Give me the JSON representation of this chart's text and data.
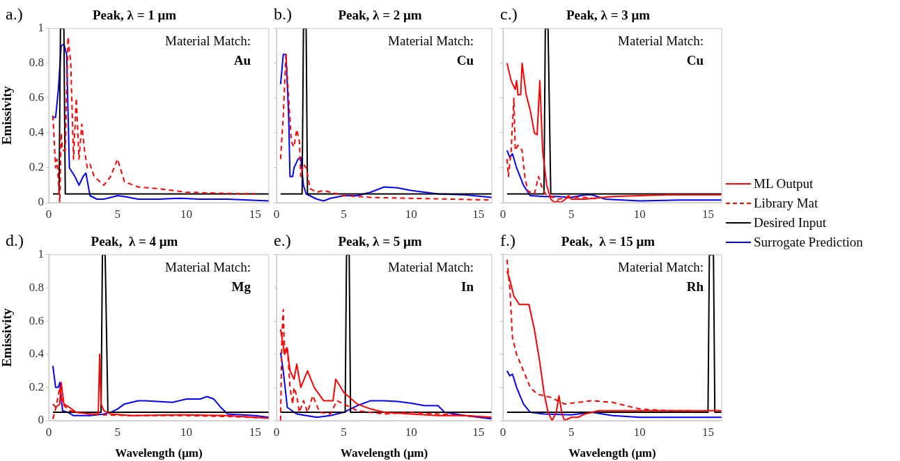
{
  "chart_data": [
    {
      "type": "line",
      "title": "Peak, λ = 1 μm",
      "ylabel": "Emissivity",
      "annotations": [
        "a.)",
        "Material Match:",
        "Au"
      ],
      "xlim": [
        0,
        16
      ],
      "xticks": [
        0,
        5,
        10,
        15
      ],
      "ylim": [
        0,
        1
      ],
      "yticks": [
        0,
        0.2,
        0.4,
        0.6,
        0.8,
        1
      ],
      "series": [
        {
          "color": "#ff0000",
          "line_style": "dashed",
          "x": [
            0.3,
            0.5,
            0.6,
            0.8,
            0.9,
            1.0,
            1.2,
            1.4,
            1.6,
            1.8,
            2.0,
            2.2,
            2.4,
            2.6,
            2.8,
            3.0,
            3.3,
            4,
            4.5,
            5,
            5.5,
            6.5,
            8,
            10,
            12,
            15
          ],
          "values": [
            0.5,
            0.2,
            0.25,
            0.0,
            0.4,
            0.3,
            0.3,
            0.95,
            0.8,
            0.25,
            0.6,
            0.25,
            0.45,
            0.3,
            0.2,
            0.22,
            0.15,
            0.1,
            0.15,
            0.25,
            0.12,
            0.09,
            0.08,
            0.06,
            0.055,
            0.05
          ]
        },
        {
          "color": "#000000",
          "x": [
            0.3,
            0.75,
            0.85,
            1.1,
            1.2,
            16
          ],
          "values": [
            0.05,
            0.05,
            1,
            1,
            0.05,
            0.05
          ]
        },
        {
          "color": "#0000ff",
          "x": [
            0.3,
            0.5,
            0.7,
            0.9,
            1.1,
            1.3,
            1.5,
            1.9,
            2.2,
            2.5,
            2.7,
            3.0,
            3.5,
            4,
            4.5,
            5,
            5.5,
            6.5,
            8,
            9.5,
            11,
            13,
            16
          ],
          "values": [
            0.49,
            0.49,
            0.65,
            0.9,
            0.91,
            0.85,
            0.2,
            0.15,
            0.1,
            0.15,
            0.17,
            0.04,
            0.02,
            0.02,
            0.03,
            0.04,
            0.035,
            0.02,
            0.02,
            0.025,
            0.02,
            0.02,
            0.01
          ]
        }
      ]
    },
    {
      "type": "line",
      "title": "Peak, λ = 2 μm",
      "annotations": [
        "b.)",
        "Material Match:",
        "Cu"
      ],
      "xlim": [
        0,
        16
      ],
      "xticks": [
        0,
        5,
        10,
        15
      ],
      "ylim": [
        0,
        1
      ],
      "yticks": [
        0,
        0.2,
        0.4,
        0.6,
        0.8,
        1
      ],
      "tick_labels": "x",
      "series": [
        {
          "color": "#ff0000",
          "line_style": "dashed",
          "x": [
            0.3,
            0.5,
            0.7,
            0.9,
            1.1,
            1.3,
            1.5,
            1.7,
            1.8,
            2.0,
            2.2,
            2.5,
            3,
            3.5,
            4,
            5,
            7,
            10,
            13,
            16
          ],
          "values": [
            0.25,
            0.5,
            0.85,
            0.6,
            0.35,
            0.32,
            0.42,
            0.35,
            0.15,
            0.22,
            0.2,
            0.08,
            0.06,
            0.07,
            0.06,
            0.04,
            0.03,
            0.025,
            0.02,
            0.015
          ]
        },
        {
          "color": "#000000",
          "x": [
            0.3,
            1.9,
            2.0,
            2.2,
            2.3,
            16
          ],
          "values": [
            0.05,
            0.05,
            1,
            1,
            0.05,
            0.05
          ]
        },
        {
          "color": "#0000ff",
          "x": [
            0.3,
            0.5,
            0.7,
            0.9,
            1.0,
            1.2,
            1.3,
            1.6,
            1.8,
            2.0,
            2.2,
            3,
            3.5,
            4,
            5,
            6,
            7,
            8,
            9,
            10,
            11,
            12,
            14,
            16
          ],
          "values": [
            0.68,
            0.85,
            0.85,
            0.5,
            0.15,
            0.15,
            0.2,
            0.25,
            0.26,
            0.1,
            0.05,
            0.02,
            0.01,
            0.025,
            0.04,
            0.04,
            0.06,
            0.09,
            0.085,
            0.07,
            0.06,
            0.05,
            0.045,
            0.03
          ]
        }
      ]
    },
    {
      "type": "line",
      "title": "Peak, λ = 3 μm",
      "annotations": [
        "c.)",
        "Material Match:",
        "Cu"
      ],
      "xlim": [
        0,
        16
      ],
      "xticks": [
        0,
        5,
        10,
        15
      ],
      "ylim": [
        0,
        1
      ],
      "yticks": [
        0,
        0.2,
        0.4,
        0.6,
        0.8,
        1
      ],
      "tick_labels": "x",
      "legend": "right",
      "series": [
        {
          "name": "ML Output",
          "color": "#ff0000",
          "x": [
            0.3,
            0.6,
            0.9,
            1.0,
            1.1,
            1.3,
            1.4,
            1.7,
            2.0,
            2.3,
            2.5,
            2.7,
            2.9,
            3.2,
            3.5,
            3.8,
            4.0,
            4.2,
            4.5,
            4.8,
            5,
            6,
            8,
            10,
            12,
            16
          ],
          "values": [
            0.8,
            0.7,
            0.65,
            0.7,
            0.62,
            0.62,
            0.8,
            0.62,
            0.53,
            0.4,
            0.39,
            0.7,
            0.3,
            0.1,
            0.02,
            0.0,
            0.01,
            0.0,
            0.015,
            0.04,
            0.02,
            0.02,
            0.035,
            0.04,
            0.045,
            0.045
          ]
        },
        {
          "name": "Library Mat",
          "color": "#ff0000",
          "line_style": "dashed",
          "x": [
            0.3,
            0.4,
            0.6,
            0.8,
            0.9,
            1.1,
            1.3,
            1.4,
            1.6,
            1.8,
            2.0,
            2.3,
            2.6,
            2.8,
            3.1,
            4,
            5,
            6,
            7
          ],
          "values": [
            0.25,
            0.15,
            0.3,
            0.6,
            0.3,
            0.33,
            0.31,
            0.3,
            0.15,
            0.07,
            0.06,
            0.05,
            0.15,
            0.1,
            0.05,
            0.02,
            0.03,
            0.03,
            0.02
          ]
        },
        {
          "name": "Desired Input",
          "color": "#000000",
          "x": [
            0.3,
            3.0,
            3.1,
            3.3,
            3.5,
            16
          ],
          "values": [
            0.05,
            0.05,
            1,
            1,
            0.05,
            0.05
          ]
        },
        {
          "name": "Surrogate Prediction",
          "color": "#0000ff",
          "x": [
            0.3,
            0.5,
            0.7,
            1.0,
            1.5,
            2,
            3,
            4,
            5,
            6,
            6.5,
            7.5,
            10,
            13,
            16
          ],
          "values": [
            0.3,
            0.26,
            0.28,
            0.2,
            0.1,
            0.04,
            0.035,
            0.035,
            0.03,
            0.045,
            0.045,
            0.02,
            0.01,
            0.015,
            0.015
          ]
        }
      ]
    },
    {
      "type": "line",
      "title": "Peak,  λ = 4 μm",
      "xlabel": "Wavelength (μm)",
      "ylabel": "Emissivity",
      "annotations": [
        "d.)",
        "Material Match:",
        "Mg"
      ],
      "xlim": [
        0,
        16
      ],
      "xticks": [
        0,
        5,
        10,
        15
      ],
      "ylim": [
        0,
        1
      ],
      "yticks": [
        0,
        0.2,
        0.4,
        0.6,
        0.8,
        1
      ],
      "series": [
        {
          "color": "#ff0000",
          "x": [
            0.3,
            0.5,
            0.8,
            0.9,
            1.1,
            1.5,
            2,
            3,
            3.6,
            3.7,
            3.8,
            4,
            4.5,
            6,
            10,
            13,
            16
          ],
          "values": [
            0.1,
            0.08,
            0.1,
            0.23,
            0.1,
            0.08,
            0.05,
            0.04,
            0.04,
            0.4,
            0.1,
            0.06,
            0.04,
            0.03,
            0.035,
            0.03,
            0.015
          ]
        },
        {
          "color": "#ff0000",
          "line_style": "dashed",
          "x": [
            0.3,
            0.5,
            0.8,
            1.0,
            1.5,
            2,
            3,
            4,
            6,
            10,
            13,
            16
          ],
          "values": [
            0.01,
            0.07,
            0.2,
            0.1,
            0.06,
            0.05,
            0.04,
            0.035,
            0.03,
            0.03,
            0.025,
            0.015
          ]
        },
        {
          "color": "#000000",
          "x": [
            0.3,
            3.8,
            3.9,
            4.1,
            4.3,
            16
          ],
          "values": [
            0.05,
            0.05,
            1,
            1,
            0.05,
            0.05
          ]
        },
        {
          "color": "#0000ff",
          "x": [
            0.3,
            0.5,
            0.7,
            0.8,
            1.0,
            1.4,
            1.8,
            3,
            4,
            4.5,
            5,
            5.5,
            6.5,
            7,
            9,
            10,
            11,
            11.5,
            12,
            12.5,
            13,
            15,
            16
          ],
          "values": [
            0.33,
            0.2,
            0.2,
            0.23,
            0.06,
            0.05,
            0.03,
            0.03,
            0.04,
            0.05,
            0.07,
            0.1,
            0.12,
            0.12,
            0.11,
            0.13,
            0.13,
            0.145,
            0.13,
            0.08,
            0.04,
            0.03,
            0.02
          ]
        }
      ]
    },
    {
      "type": "line",
      "title": "Peak, λ = 5 μm",
      "xlabel": "Wavelength (μm)",
      "annotations": [
        "e.)",
        "Material Match:",
        "In"
      ],
      "xlim": [
        0,
        16
      ],
      "xticks": [
        0,
        5,
        10,
        15
      ],
      "ylim": [
        0,
        1
      ],
      "yticks": [
        0,
        0.2,
        0.4,
        0.6,
        0.8,
        1
      ],
      "tick_labels": "x",
      "series": [
        {
          "color": "#ff0000",
          "x": [
            0.3,
            0.5,
            0.6,
            0.8,
            1.0,
            1.3,
            1.5,
            1.8,
            2.3,
            2.8,
            3.5,
            4.2,
            4.4,
            5,
            6,
            7,
            8,
            10,
            12,
            14,
            16
          ],
          "values": [
            0.55,
            0.45,
            0.4,
            0.43,
            0.3,
            0.25,
            0.34,
            0.2,
            0.3,
            0.2,
            0.12,
            0.12,
            0.25,
            0.17,
            0.1,
            0.07,
            0.05,
            0.04,
            0.03,
            0.03,
            0.02
          ]
        },
        {
          "color": "#ff0000",
          "line_style": "dashed",
          "x": [
            0.3,
            0.4,
            0.5,
            0.6,
            0.8,
            1.0,
            1.2,
            1.3,
            1.5,
            1.7,
            2,
            2.3,
            2.7,
            3.2,
            4,
            4.5,
            5,
            6,
            8,
            10,
            12,
            16
          ],
          "values": [
            0.0,
            0.5,
            0.67,
            0.4,
            0.45,
            0.2,
            0.1,
            0.2,
            0.15,
            0.05,
            0.12,
            0.05,
            0.15,
            0.05,
            0.04,
            0.12,
            0.1,
            0.06,
            0.04,
            0.05,
            0.04,
            0.02
          ]
        },
        {
          "color": "#000000",
          "x": [
            0.3,
            5.1,
            5.2,
            5.4,
            5.5,
            16
          ],
          "values": [
            0.05,
            0.05,
            1,
            1,
            0.05,
            0.05
          ]
        },
        {
          "color": "#0000ff",
          "x": [
            0.3,
            0.5,
            0.8,
            1.5,
            3,
            4,
            5,
            6,
            7,
            8,
            9,
            10,
            11,
            12,
            12.5,
            14,
            16
          ],
          "values": [
            0.41,
            0.3,
            0.08,
            0.04,
            0.02,
            0.03,
            0.05,
            0.09,
            0.12,
            0.12,
            0.115,
            0.105,
            0.09,
            0.09,
            0.05,
            0.03,
            0.01
          ]
        }
      ]
    },
    {
      "type": "line",
      "title": "Peak,  λ = 15 μm",
      "xlabel": "Wavelength (μm)",
      "annotations": [
        "f.)",
        "Material Match:",
        "Rh"
      ],
      "xlim": [
        0,
        16
      ],
      "xticks": [
        0,
        5,
        10,
        15
      ],
      "ylim": [
        0,
        1
      ],
      "yticks": [
        0,
        0.2,
        0.4,
        0.6,
        0.8,
        1
      ],
      "tick_labels": "x",
      "series": [
        {
          "color": "#ff0000",
          "x": [
            0.3,
            0.5,
            0.8,
            1.2,
            1.5,
            1.9,
            2.3,
            2.7,
            3.0,
            3.3,
            3.6,
            3.9,
            4.1,
            4.3,
            4.5,
            5,
            5.5,
            6,
            7,
            10,
            13,
            15,
            16
          ],
          "values": [
            0.9,
            0.85,
            0.75,
            0.7,
            0.7,
            0.7,
            0.55,
            0.35,
            0.17,
            0.05,
            0.0,
            0.05,
            0.15,
            0.05,
            0.0,
            0.02,
            0.02,
            0.04,
            0.06,
            0.06,
            0.06,
            0.06,
            0.06
          ]
        },
        {
          "color": "#ff0000",
          "line_style": "dashed",
          "x": [
            0.3,
            0.5,
            0.7,
            1,
            1.5,
            2,
            2.5,
            3.5,
            4.5,
            5.5,
            6.5,
            8,
            9,
            10,
            12,
            14
          ],
          "values": [
            0.97,
            0.8,
            0.5,
            0.4,
            0.3,
            0.2,
            0.16,
            0.14,
            0.1,
            0.11,
            0.12,
            0.11,
            0.09,
            0.07,
            0.06,
            0.06
          ]
        },
        {
          "color": "#000000",
          "x": [
            0.3,
            15,
            15.1,
            15.4,
            15.5,
            16
          ],
          "values": [
            0.05,
            0.05,
            1,
            1,
            0.05,
            0.05
          ]
        },
        {
          "color": "#0000ff",
          "x": [
            0.3,
            0.5,
            0.7,
            1.0,
            1.5,
            2,
            3,
            5,
            6.5,
            8,
            10,
            16
          ],
          "values": [
            0.3,
            0.27,
            0.28,
            0.2,
            0.1,
            0.05,
            0.04,
            0.035,
            0.05,
            0.03,
            0.02,
            0.02
          ]
        }
      ]
    }
  ]
}
